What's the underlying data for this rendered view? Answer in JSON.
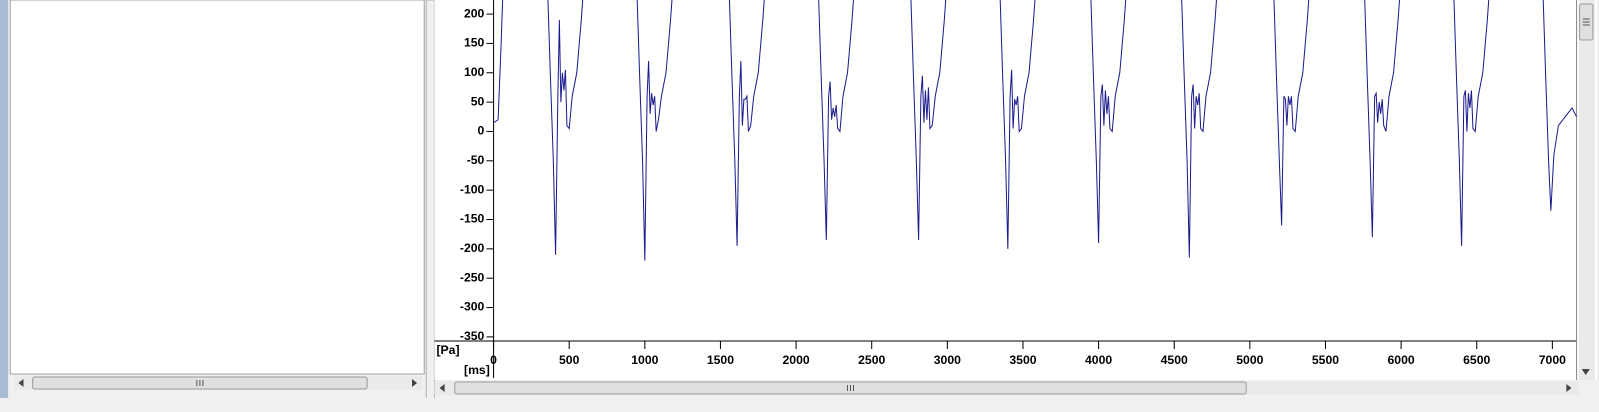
{
  "chart_data": {
    "type": "line",
    "ylabel": "[Pa]",
    "xlabel": "[ms]",
    "color": "#1c1c8e",
    "xlim": [
      0,
      7160
    ],
    "ylim": [
      -357,
      224
    ],
    "xticks": [
      0,
      500,
      1000,
      1500,
      2000,
      2500,
      3000,
      3500,
      4000,
      4500,
      5000,
      5500,
      6000,
      6500,
      7000
    ],
    "yticks": [
      200,
      150,
      100,
      50,
      0,
      -50,
      -100,
      -150,
      -200,
      -250,
      -300,
      -350
    ],
    "x": [
      0,
      30,
      50,
      70,
      350,
      375,
      395,
      410,
      425,
      435,
      445,
      455,
      465,
      475,
      485,
      500,
      520,
      550,
      580,
      610,
      940,
      965,
      985,
      1000,
      1015,
      1025,
      1035,
      1045,
      1055,
      1065,
      1075,
      1090,
      1110,
      1140,
      1170,
      1200,
      1550,
      1575,
      1595,
      1610,
      1625,
      1635,
      1645,
      1655,
      1665,
      1675,
      1685,
      1700,
      1720,
      1750,
      1780,
      1810,
      2140,
      2165,
      2185,
      2200,
      2215,
      2225,
      2235,
      2245,
      2255,
      2265,
      2275,
      2290,
      2310,
      2340,
      2370,
      2400,
      2750,
      2775,
      2795,
      2810,
      2825,
      2835,
      2845,
      2855,
      2865,
      2875,
      2885,
      2900,
      2920,
      2950,
      2980,
      3010,
      3340,
      3365,
      3385,
      3400,
      3415,
      3425,
      3435,
      3445,
      3455,
      3465,
      3475,
      3490,
      3510,
      3540,
      3570,
      3600,
      3940,
      3965,
      3985,
      4000,
      4015,
      4025,
      4035,
      4045,
      4055,
      4065,
      4075,
      4090,
      4110,
      4140,
      4170,
      4200,
      4540,
      4565,
      4585,
      4600,
      4615,
      4625,
      4635,
      4645,
      4655,
      4665,
      4675,
      4690,
      4710,
      4740,
      4770,
      4800,
      5150,
      5175,
      5195,
      5210,
      5225,
      5235,
      5245,
      5255,
      5265,
      5275,
      5285,
      5300,
      5320,
      5350,
      5380,
      5410,
      5750,
      5775,
      5795,
      5810,
      5825,
      5835,
      5845,
      5855,
      5865,
      5875,
      5885,
      5900,
      5920,
      5950,
      5980,
      6010,
      6340,
      6365,
      6385,
      6400,
      6415,
      6425,
      6435,
      6445,
      6455,
      6465,
      6475,
      6490,
      6510,
      6540,
      6570,
      6600,
      6930,
      6955,
      6975,
      6990,
      7010,
      7040,
      7070,
      7100,
      7130,
      7160
    ],
    "values": [
      15,
      20,
      150,
      300,
      300,
      100,
      -50,
      -210,
      60,
      190,
      50,
      100,
      70,
      105,
      10,
      5,
      60,
      100,
      190,
      300,
      300,
      100,
      -50,
      -220,
      60,
      120,
      30,
      65,
      45,
      60,
      0,
      20,
      60,
      100,
      190,
      300,
      300,
      100,
      -50,
      -195,
      60,
      120,
      10,
      55,
      55,
      60,
      0,
      10,
      60,
      100,
      190,
      300,
      300,
      100,
      -50,
      -185,
      60,
      85,
      20,
      40,
      25,
      45,
      5,
      0,
      60,
      100,
      190,
      300,
      300,
      100,
      -50,
      -185,
      60,
      95,
      15,
      70,
      20,
      75,
      5,
      10,
      60,
      100,
      190,
      300,
      300,
      100,
      -50,
      -200,
      60,
      105,
      5,
      55,
      45,
      60,
      0,
      5,
      60,
      100,
      190,
      300,
      300,
      100,
      -50,
      -190,
      60,
      80,
      10,
      70,
      30,
      60,
      5,
      0,
      60,
      100,
      190,
      300,
      300,
      100,
      -50,
      -215,
      60,
      80,
      5,
      60,
      45,
      65,
      5,
      0,
      60,
      100,
      190,
      300,
      300,
      100,
      -50,
      -160,
      60,
      55,
      10,
      60,
      45,
      60,
      5,
      0,
      60,
      100,
      190,
      300,
      300,
      100,
      -50,
      -180,
      60,
      65,
      15,
      50,
      30,
      55,
      10,
      0,
      60,
      100,
      190,
      300,
      300,
      100,
      -50,
      -195,
      60,
      70,
      0,
      65,
      40,
      70,
      5,
      0,
      60,
      100,
      190,
      300,
      300,
      100,
      -50,
      -135,
      -40,
      10,
      20,
      30,
      40,
      25
    ]
  }
}
